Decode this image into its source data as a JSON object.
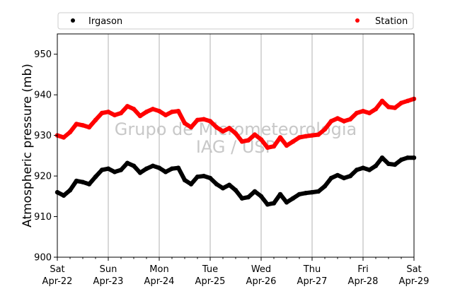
{
  "chart_data": {
    "type": "scatter",
    "ylabel": "Atmospheric pressure (mb)",
    "ylim": [
      900,
      955
    ],
    "yticks": [
      900,
      910,
      920,
      930,
      940,
      950
    ],
    "xlim": [
      "2023-04-22",
      "2023-04-29"
    ],
    "xticks": [
      {
        "day": "Sat",
        "date": "Apr-22"
      },
      {
        "day": "Sun",
        "date": "Apr-23"
      },
      {
        "day": "Mon",
        "date": "Apr-24"
      },
      {
        "day": "Tue",
        "date": "Apr-25"
      },
      {
        "day": "Wed",
        "date": "Apr-26"
      },
      {
        "day": "Thu",
        "date": "Apr-27"
      },
      {
        "day": "Fri",
        "date": "Apr-28"
      },
      {
        "day": "Sat",
        "date": "Apr-29"
      }
    ],
    "grid": "vertical",
    "legend": "top",
    "watermark": [
      "Grupo de Micrometeorologia",
      "IAG / USP"
    ],
    "series": [
      {
        "name": "Irgason",
        "color": "#000000",
        "x": [
          "2023-04-22 00:00",
          "2023-04-22 03:00",
          "2023-04-22 06:00",
          "2023-04-22 09:00",
          "2023-04-22 12:00",
          "2023-04-22 15:00",
          "2023-04-22 18:00",
          "2023-04-22 21:00",
          "2023-04-23 00:00",
          "2023-04-23 03:00",
          "2023-04-23 06:00",
          "2023-04-23 09:00",
          "2023-04-23 12:00",
          "2023-04-23 15:00",
          "2023-04-23 18:00",
          "2023-04-23 21:00",
          "2023-04-24 00:00",
          "2023-04-24 03:00",
          "2023-04-24 06:00",
          "2023-04-24 09:00",
          "2023-04-24 12:00",
          "2023-04-24 15:00",
          "2023-04-24 18:00",
          "2023-04-24 21:00",
          "2023-04-25 00:00",
          "2023-04-25 03:00",
          "2023-04-25 06:00",
          "2023-04-25 09:00",
          "2023-04-25 12:00",
          "2023-04-25 15:00",
          "2023-04-25 18:00",
          "2023-04-25 21:00",
          "2023-04-26 00:00",
          "2023-04-26 03:00",
          "2023-04-26 06:00",
          "2023-04-26 09:00",
          "2023-04-26 12:00",
          "2023-04-26 15:00",
          "2023-04-26 18:00",
          "2023-04-26 21:00",
          "2023-04-27 00:00",
          "2023-04-27 03:00",
          "2023-04-27 06:00",
          "2023-04-27 09:00",
          "2023-04-27 12:00",
          "2023-04-27 15:00",
          "2023-04-27 18:00",
          "2023-04-27 21:00",
          "2023-04-28 00:00",
          "2023-04-28 03:00",
          "2023-04-28 06:00",
          "2023-04-28 09:00",
          "2023-04-28 12:00",
          "2023-04-28 15:00",
          "2023-04-28 18:00",
          "2023-04-28 21:00",
          "2023-04-29 00:00"
        ],
        "y": [
          916.0,
          915.2,
          916.5,
          918.8,
          918.5,
          918.0,
          919.8,
          921.5,
          921.8,
          921.0,
          921.5,
          923.2,
          922.5,
          920.8,
          921.8,
          922.5,
          922.0,
          921.0,
          921.8,
          922.0,
          919.0,
          918.0,
          919.8,
          920.0,
          919.5,
          918.0,
          917.0,
          917.8,
          916.5,
          914.5,
          914.8,
          916.2,
          915.0,
          913.0,
          913.3,
          915.5,
          913.5,
          914.5,
          915.5,
          915.8,
          916.0,
          916.2,
          917.5,
          919.5,
          920.2,
          919.5,
          920.0,
          921.5,
          922.0,
          921.5,
          922.5,
          924.5,
          923.0,
          922.8,
          924.0,
          924.5,
          924.5
        ]
      },
      {
        "name": "Station",
        "color": "#ff0000",
        "x": [
          "2023-04-22 00:00",
          "2023-04-22 03:00",
          "2023-04-22 06:00",
          "2023-04-22 09:00",
          "2023-04-22 12:00",
          "2023-04-22 15:00",
          "2023-04-22 18:00",
          "2023-04-22 21:00",
          "2023-04-23 00:00",
          "2023-04-23 03:00",
          "2023-04-23 06:00",
          "2023-04-23 09:00",
          "2023-04-23 12:00",
          "2023-04-23 15:00",
          "2023-04-23 18:00",
          "2023-04-23 21:00",
          "2023-04-24 00:00",
          "2023-04-24 03:00",
          "2023-04-24 06:00",
          "2023-04-24 09:00",
          "2023-04-24 12:00",
          "2023-04-24 15:00",
          "2023-04-24 18:00",
          "2023-04-24 21:00",
          "2023-04-25 00:00",
          "2023-04-25 03:00",
          "2023-04-25 06:00",
          "2023-04-25 09:00",
          "2023-04-25 12:00",
          "2023-04-25 15:00",
          "2023-04-25 18:00",
          "2023-04-25 21:00",
          "2023-04-26 00:00",
          "2023-04-26 03:00",
          "2023-04-26 06:00",
          "2023-04-26 09:00",
          "2023-04-26 12:00",
          "2023-04-26 15:00",
          "2023-04-26 18:00",
          "2023-04-26 21:00",
          "2023-04-27 00:00",
          "2023-04-27 03:00",
          "2023-04-27 06:00",
          "2023-04-27 09:00",
          "2023-04-27 12:00",
          "2023-04-27 15:00",
          "2023-04-27 18:00",
          "2023-04-27 21:00",
          "2023-04-28 00:00",
          "2023-04-28 03:00",
          "2023-04-28 06:00",
          "2023-04-28 09:00",
          "2023-04-28 12:00",
          "2023-04-28 15:00",
          "2023-04-28 18:00",
          "2023-04-28 21:00",
          "2023-04-29 00:00"
        ],
        "y": [
          930.0,
          929.5,
          930.8,
          932.8,
          932.5,
          932.0,
          933.8,
          935.5,
          935.8,
          935.0,
          935.5,
          937.2,
          936.5,
          934.8,
          935.8,
          936.5,
          936.0,
          935.0,
          935.8,
          936.0,
          933.0,
          932.0,
          933.8,
          934.0,
          933.5,
          932.0,
          931.0,
          931.8,
          930.5,
          928.5,
          928.8,
          930.2,
          929.0,
          927.0,
          927.3,
          929.5,
          927.5,
          928.5,
          929.5,
          929.8,
          930.0,
          930.2,
          931.5,
          933.5,
          934.2,
          933.5,
          934.0,
          935.5,
          936.0,
          935.5,
          936.5,
          938.5,
          937.0,
          936.8,
          938.0,
          938.5,
          939.0
        ]
      }
    ]
  }
}
